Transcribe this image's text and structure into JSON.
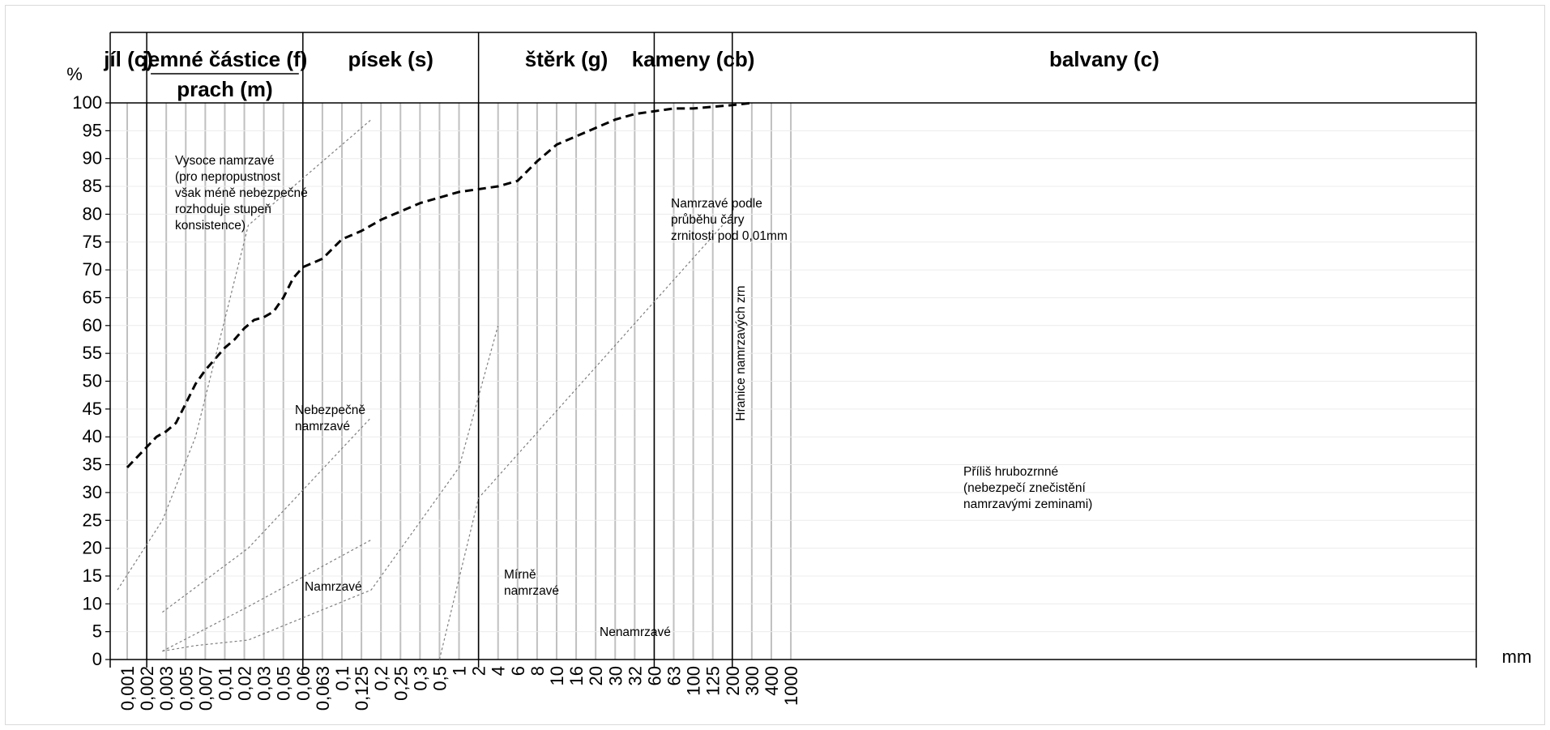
{
  "chart_data": {
    "type": "line",
    "title": "",
    "ylabel": "%",
    "xlabel": "mm",
    "ylim": [
      0,
      100
    ],
    "y_ticks": [
      "0",
      "5",
      "10",
      "15",
      "20",
      "25",
      "30",
      "35",
      "40",
      "45",
      "50",
      "55",
      "60",
      "65",
      "70",
      "75",
      "80",
      "85",
      "90",
      "95",
      "100"
    ],
    "x_ticks": [
      "0,001",
      "0,002",
      "0,003",
      "0,005",
      "0,007",
      "0,01",
      "0,02",
      "0,03",
      "0,05",
      "0,06",
      "0,063",
      "0,1",
      "0,125",
      "0,2",
      "0,25",
      "0,3",
      "0,5",
      "1",
      "2",
      "4",
      "6",
      "8",
      "10",
      "16",
      "20",
      "30",
      "32",
      "60",
      "63",
      "100",
      "125",
      "200",
      "300",
      "400",
      "1000"
    ],
    "headers": {
      "clay": "jíl (c)",
      "fines": "jemné částice (f)",
      "silt": "prach (m)",
      "sand": "písek (s)",
      "gravel": "štěrk (g)",
      "cobbles": "kameny (cb)",
      "boulders": "balvany (c)"
    },
    "series": [
      {
        "style": "dashed-bold",
        "color": "#000000",
        "points": [
          [
            0,
            34.5
          ],
          [
            1.5,
            40
          ],
          [
            2,
            41
          ],
          [
            2.5,
            42.5
          ],
          [
            3,
            46
          ],
          [
            3.5,
            49.5
          ],
          [
            4,
            52
          ],
          [
            5,
            56
          ],
          [
            5.5,
            57.5
          ],
          [
            6,
            59.5
          ],
          [
            6.5,
            61
          ],
          [
            7,
            61.5
          ],
          [
            7.5,
            62.5
          ],
          [
            8,
            65
          ],
          [
            8.5,
            68.5
          ],
          [
            9,
            70.5
          ],
          [
            10,
            72
          ],
          [
            11,
            75.5
          ],
          [
            12,
            77
          ],
          [
            13,
            79
          ],
          [
            14,
            80.5
          ],
          [
            15,
            82
          ],
          [
            16,
            83
          ],
          [
            17,
            84
          ],
          [
            18,
            84.5
          ],
          [
            19,
            85
          ],
          [
            20,
            86
          ],
          [
            21,
            89.5
          ],
          [
            22,
            92.5
          ],
          [
            23,
            94
          ],
          [
            24,
            95.5
          ],
          [
            25,
            97
          ],
          [
            26,
            98
          ],
          [
            27,
            98.5
          ],
          [
            28,
            99
          ],
          [
            29,
            99
          ],
          [
            30,
            99.3
          ],
          [
            31,
            99.6
          ],
          [
            32,
            100
          ]
        ]
      },
      {
        "style": "dotted-thin",
        "color": "#7f7f7f",
        "points": [
          [
            -0.5,
            12.5
          ],
          [
            1.8,
            25
          ],
          [
            3.5,
            40
          ],
          [
            6.2,
            78
          ],
          [
            12.5,
            97
          ]
        ]
      },
      {
        "style": "dotted-thin",
        "color": "#7f7f7f",
        "points": [
          [
            1.8,
            8.5
          ],
          [
            6.2,
            20
          ],
          [
            12.5,
            43.5
          ]
        ]
      },
      {
        "style": "dotted-thin",
        "color": "#7f7f7f",
        "points": [
          [
            1.8,
            1.5
          ],
          [
            6.2,
            9.5
          ],
          [
            12.5,
            21.5
          ]
        ]
      },
      {
        "style": "dotted-thin",
        "color": "#7f7f7f",
        "points": [
          [
            1.8,
            1.5
          ],
          [
            3.5,
            2.5
          ],
          [
            6.2,
            3.5
          ],
          [
            12.5,
            12.5
          ],
          [
            17,
            34.5
          ],
          [
            19,
            60
          ]
        ]
      },
      {
        "style": "dotted-thin",
        "color": "#7f7f7f",
        "points": [
          [
            16,
            0
          ],
          [
            18,
            29
          ],
          [
            30.5,
            78
          ]
        ]
      }
    ],
    "annotations": [
      {
        "lines": [
          "Vysoce namrzavé",
          "(pro nepropustnost",
          "však méně nebezpečné",
          "rozhoduje stupeň",
          "konsistence)"
        ]
      },
      {
        "lines": [
          "Namrzavé podle",
          "průběhu čáry",
          "zrnitosti pod 0,01mm"
        ]
      },
      {
        "lines": [
          "Nebezpečně",
          "namrzavé"
        ]
      },
      {
        "lines": [
          "Namrzavé"
        ]
      },
      {
        "lines": [
          "Mírně",
          "namrzavé"
        ]
      },
      {
        "lines": [
          "Nenamrzavé"
        ]
      },
      {
        "lines": [
          "Příliš hrubozrnné",
          "(nebezpečí znečistění",
          "namrzavými zeminami)"
        ]
      },
      {
        "lines": [
          "Hranice namrzavých zrn"
        ]
      }
    ],
    "grid": true
  }
}
